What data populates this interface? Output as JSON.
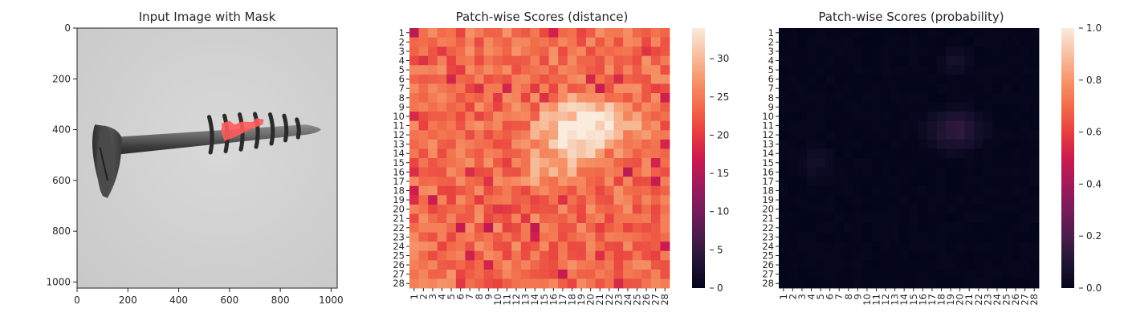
{
  "chart_data": [
    {
      "type": "image",
      "title": "Input Image with Mask",
      "x_ticks": [
        0,
        200,
        400,
        600,
        800,
        1000
      ],
      "y_ticks": [
        0,
        200,
        400,
        600,
        800,
        1000
      ],
      "xlim": [
        0,
        1024
      ],
      "ylim": [
        1024,
        0
      ],
      "mask_color": "#ff5a5a"
    },
    {
      "type": "heatmap",
      "title": "Patch-wise Scores (distance)",
      "rows": 28,
      "cols": 28,
      "row_labels": [
        "1",
        "2",
        "3",
        "4",
        "5",
        "6",
        "7",
        "8",
        "9",
        "10",
        "11",
        "12",
        "13",
        "14",
        "15",
        "16",
        "17",
        "18",
        "19",
        "20",
        "21",
        "22",
        "23",
        "24",
        "25",
        "26",
        "27",
        "28"
      ],
      "col_labels": [
        "1",
        "2",
        "3",
        "4",
        "5",
        "6",
        "7",
        "8",
        "9",
        "10",
        "11",
        "12",
        "13",
        "14",
        "15",
        "16",
        "17",
        "18",
        "19",
        "20",
        "21",
        "22",
        "23",
        "24",
        "25",
        "26",
        "27",
        "28"
      ],
      "colorbar_ticks": [
        0,
        5,
        10,
        15,
        20,
        25,
        30
      ],
      "vmin": 0,
      "vmax": 34,
      "colormap": "rocket",
      "hot_spot": {
        "row": 11.5,
        "col": 19.5,
        "value": 34
      },
      "background_range": [
        17,
        27
      ]
    },
    {
      "type": "heatmap",
      "title": "Patch-wise Scores (probability)",
      "rows": 28,
      "cols": 28,
      "row_labels": [
        "1",
        "2",
        "3",
        "4",
        "5",
        "6",
        "7",
        "8",
        "9",
        "10",
        "11",
        "12",
        "13",
        "14",
        "15",
        "16",
        "17",
        "18",
        "19",
        "20",
        "21",
        "22",
        "23",
        "24",
        "25",
        "26",
        "27",
        "28"
      ],
      "col_labels": [
        "1",
        "2",
        "3",
        "4",
        "5",
        "6",
        "7",
        "8",
        "9",
        "10",
        "11",
        "12",
        "13",
        "14",
        "15",
        "16",
        "17",
        "18",
        "19",
        "20",
        "21",
        "22",
        "23",
        "24",
        "25",
        "26",
        "27",
        "28"
      ],
      "colorbar_ticks": [
        "0.0",
        "0.2",
        "0.4",
        "0.6",
        "0.8",
        "1.0"
      ],
      "vmin": 0.0,
      "vmax": 1.0,
      "colormap": "rocket",
      "hot_spot": {
        "row": 11.5,
        "col": 19.5,
        "value": 0.15
      },
      "background_range": [
        0.0,
        0.03
      ]
    }
  ]
}
